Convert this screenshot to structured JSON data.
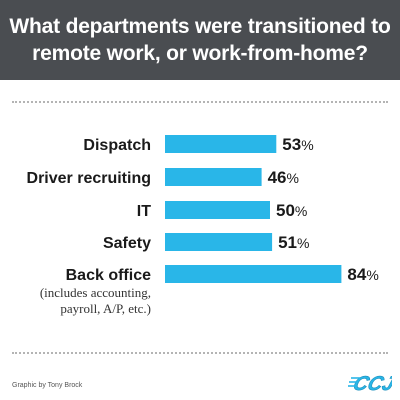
{
  "header": {
    "title": "What departments were transitioned to remote work, or work-from-home?"
  },
  "chart_data": {
    "type": "bar",
    "orientation": "horizontal",
    "categories": [
      "Dispatch",
      "Driver recruiting",
      "IT",
      "Safety",
      "Back office"
    ],
    "category_notes": [
      "",
      "",
      "",
      "",
      "(includes accounting, payroll, A/P, etc.)"
    ],
    "values": [
      53,
      46,
      50,
      51,
      84
    ],
    "value_suffix": "%",
    "xlim": [
      0,
      100
    ],
    "grid": false,
    "bar_color": "#29b6e8"
  },
  "footer": {
    "credit": "Graphic by Tony Brock",
    "logo_text": "CCJ"
  },
  "colors": {
    "header_bg": "#4a4d51",
    "bar": "#29b6e8",
    "logo": "#29b6e8"
  }
}
